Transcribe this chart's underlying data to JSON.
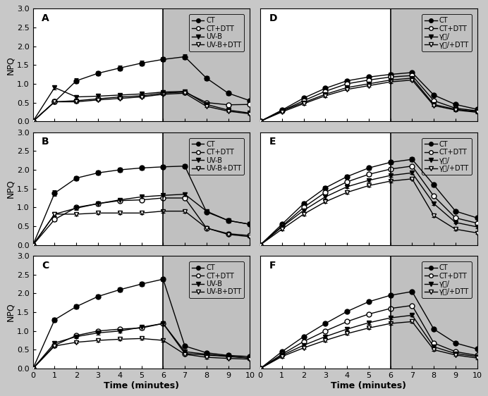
{
  "figsize": [
    6.92,
    5.62
  ],
  "dpi": 100,
  "shade_start": 6,
  "shade_end": 10,
  "time": [
    0,
    1,
    2,
    3,
    4,
    5,
    6,
    7,
    8,
    9,
    10
  ],
  "ylim": [
    0.0,
    3.0
  ],
  "yticks": [
    0.0,
    0.5,
    1.0,
    1.5,
    2.0,
    2.5,
    3.0
  ],
  "xlim": [
    0,
    10
  ],
  "xticks": [
    0,
    1,
    2,
    3,
    4,
    5,
    6,
    7,
    8,
    9,
    10
  ],
  "panels": [
    {
      "label": "A",
      "CT": [
        0.0,
        0.52,
        1.08,
        1.28,
        1.42,
        1.55,
        1.65,
        1.72,
        1.15,
        0.75,
        0.55
      ],
      "CT_DTT": [
        0.0,
        0.52,
        0.55,
        0.6,
        0.65,
        0.68,
        0.75,
        0.78,
        0.5,
        0.44,
        0.45
      ],
      "UVB": [
        0.0,
        0.9,
        0.65,
        0.67,
        0.7,
        0.73,
        0.78,
        0.8,
        0.45,
        0.3,
        0.22
      ],
      "UVB_DTT": [
        0.0,
        0.52,
        0.52,
        0.57,
        0.61,
        0.65,
        0.72,
        0.75,
        0.4,
        0.27,
        0.2
      ],
      "legend_label3": "UV-B",
      "legend_label4": "UV-B+DTT",
      "CT_err": [
        0,
        0.05,
        0.06,
        0.06,
        0.06,
        0.06,
        0.06,
        0.06,
        0.05,
        0.05,
        0.04
      ],
      "CT_DTT_err": [
        0,
        0.03,
        0.03,
        0.03,
        0.03,
        0.03,
        0.03,
        0.03,
        0.03,
        0.03,
        0.03
      ],
      "UVB_err": [
        0,
        0.05,
        0.04,
        0.04,
        0.04,
        0.04,
        0.04,
        0.04,
        0.03,
        0.03,
        0.03
      ],
      "UVB_DTT_err": [
        0,
        0.03,
        0.03,
        0.03,
        0.03,
        0.03,
        0.03,
        0.03,
        0.03,
        0.03,
        0.03
      ]
    },
    {
      "label": "D",
      "CT": [
        0.0,
        0.3,
        0.62,
        0.88,
        1.08,
        1.18,
        1.25,
        1.3,
        0.7,
        0.45,
        0.32
      ],
      "CT_DTT": [
        0.0,
        0.28,
        0.55,
        0.8,
        1.0,
        1.1,
        1.18,
        1.22,
        0.55,
        0.35,
        0.28
      ],
      "UVB": [
        0.0,
        0.28,
        0.5,
        0.72,
        0.9,
        1.0,
        1.1,
        1.15,
        0.45,
        0.32,
        0.26
      ],
      "UVB_DTT": [
        0.0,
        0.25,
        0.47,
        0.68,
        0.85,
        0.95,
        1.05,
        1.1,
        0.42,
        0.3,
        0.24
      ],
      "legend_label3": "γ線/",
      "legend_label4": "γ線/+DTT",
      "CT_err": [
        0,
        0.03,
        0.04,
        0.04,
        0.04,
        0.04,
        0.04,
        0.04,
        0.04,
        0.03,
        0.03
      ],
      "CT_DTT_err": [
        0,
        0.03,
        0.03,
        0.03,
        0.03,
        0.03,
        0.03,
        0.03,
        0.03,
        0.03,
        0.03
      ],
      "UVB_err": [
        0,
        0.03,
        0.03,
        0.03,
        0.03,
        0.03,
        0.03,
        0.03,
        0.03,
        0.03,
        0.03
      ],
      "UVB_DTT_err": [
        0,
        0.03,
        0.03,
        0.03,
        0.03,
        0.03,
        0.03,
        0.03,
        0.03,
        0.03,
        0.03
      ]
    },
    {
      "label": "B",
      "CT": [
        0.0,
        1.38,
        1.78,
        1.92,
        2.0,
        2.05,
        2.08,
        2.1,
        0.88,
        0.65,
        0.55
      ],
      "CT_DTT": [
        0.0,
        0.68,
        1.0,
        1.1,
        1.18,
        1.2,
        1.25,
        1.25,
        0.45,
        0.3,
        0.25
      ],
      "UVB": [
        0.0,
        0.82,
        0.98,
        1.1,
        1.2,
        1.28,
        1.32,
        1.35,
        0.9,
        0.65,
        0.55
      ],
      "UVB_DTT": [
        0.0,
        0.82,
        0.82,
        0.85,
        0.85,
        0.85,
        0.9,
        0.9,
        0.45,
        0.28,
        0.22
      ],
      "legend_label3": "UV-B",
      "legend_label4": "UV-B+DTT",
      "CT_err": [
        0,
        0.08,
        0.06,
        0.06,
        0.05,
        0.05,
        0.05,
        0.05,
        0.05,
        0.05,
        0.04
      ],
      "CT_DTT_err": [
        0,
        0.05,
        0.04,
        0.04,
        0.04,
        0.04,
        0.04,
        0.04,
        0.03,
        0.03,
        0.03
      ],
      "UVB_err": [
        0,
        0.05,
        0.05,
        0.05,
        0.05,
        0.05,
        0.05,
        0.05,
        0.04,
        0.04,
        0.04
      ],
      "UVB_DTT_err": [
        0,
        0.04,
        0.04,
        0.04,
        0.04,
        0.04,
        0.04,
        0.04,
        0.03,
        0.03,
        0.03
      ]
    },
    {
      "label": "E",
      "CT": [
        0.0,
        0.55,
        1.1,
        1.52,
        1.82,
        2.05,
        2.2,
        2.28,
        1.6,
        0.9,
        0.72
      ],
      "CT_DTT": [
        0.0,
        0.5,
        1.0,
        1.4,
        1.68,
        1.88,
        2.02,
        2.1,
        1.3,
        0.72,
        0.58
      ],
      "UVB": [
        0.0,
        0.48,
        0.92,
        1.28,
        1.55,
        1.72,
        1.85,
        1.92,
        1.1,
        0.6,
        0.48
      ],
      "UVB_DTT": [
        0.0,
        0.42,
        0.82,
        1.15,
        1.4,
        1.58,
        1.7,
        1.76,
        0.78,
        0.42,
        0.32
      ],
      "legend_label3": "γ線/",
      "legend_label4": "γ線/+DTT",
      "CT_err": [
        0,
        0.04,
        0.05,
        0.05,
        0.05,
        0.05,
        0.05,
        0.05,
        0.05,
        0.04,
        0.04
      ],
      "CT_DTT_err": [
        0,
        0.04,
        0.04,
        0.04,
        0.04,
        0.04,
        0.04,
        0.04,
        0.04,
        0.03,
        0.03
      ],
      "UVB_err": [
        0,
        0.03,
        0.04,
        0.04,
        0.04,
        0.04,
        0.04,
        0.04,
        0.03,
        0.03,
        0.03
      ],
      "UVB_DTT_err": [
        0,
        0.03,
        0.03,
        0.03,
        0.03,
        0.03,
        0.03,
        0.03,
        0.03,
        0.03,
        0.03
      ]
    },
    {
      "label": "C",
      "CT": [
        0.0,
        1.3,
        1.65,
        1.92,
        2.1,
        2.25,
        2.38,
        0.6,
        0.42,
        0.35,
        0.32
      ],
      "CT_DTT": [
        0.0,
        0.62,
        0.88,
        1.0,
        1.05,
        1.08,
        1.2,
        0.4,
        0.36,
        0.32,
        0.28
      ],
      "UVB": [
        0.0,
        0.68,
        0.85,
        0.95,
        1.0,
        1.1,
        1.2,
        0.45,
        0.38,
        0.33,
        0.28
      ],
      "UVB_DTT": [
        0.0,
        0.6,
        0.7,
        0.75,
        0.78,
        0.8,
        0.75,
        0.38,
        0.3,
        0.27,
        0.25
      ],
      "legend_label3": "UV-B",
      "legend_label4": "UV-B+DTT",
      "CT_err": [
        0,
        0.06,
        0.05,
        0.05,
        0.05,
        0.05,
        0.05,
        0.04,
        0.03,
        0.03,
        0.03
      ],
      "CT_DTT_err": [
        0,
        0.04,
        0.04,
        0.04,
        0.04,
        0.04,
        0.04,
        0.03,
        0.03,
        0.03,
        0.03
      ],
      "UVB_err": [
        0,
        0.04,
        0.04,
        0.04,
        0.04,
        0.04,
        0.04,
        0.03,
        0.03,
        0.03,
        0.03
      ],
      "UVB_DTT_err": [
        0,
        0.03,
        0.03,
        0.03,
        0.03,
        0.03,
        0.03,
        0.03,
        0.03,
        0.03,
        0.03
      ]
    },
    {
      "label": "F",
      "CT": [
        0.0,
        0.45,
        0.85,
        1.2,
        1.52,
        1.78,
        1.95,
        2.05,
        1.05,
        0.68,
        0.52
      ],
      "CT_DTT": [
        0.0,
        0.38,
        0.72,
        1.0,
        1.25,
        1.45,
        1.6,
        1.68,
        0.68,
        0.45,
        0.35
      ],
      "UVB": [
        0.0,
        0.35,
        0.62,
        0.85,
        1.05,
        1.22,
        1.35,
        1.42,
        0.58,
        0.4,
        0.32
      ],
      "UVB_DTT": [
        0.0,
        0.32,
        0.55,
        0.75,
        0.93,
        1.08,
        1.2,
        1.25,
        0.5,
        0.36,
        0.28
      ],
      "legend_label3": "γ線/",
      "legend_label4": "γ線/+DTT",
      "CT_err": [
        0,
        0.04,
        0.04,
        0.04,
        0.04,
        0.04,
        0.04,
        0.04,
        0.04,
        0.03,
        0.03
      ],
      "CT_DTT_err": [
        0,
        0.03,
        0.03,
        0.03,
        0.03,
        0.03,
        0.03,
        0.03,
        0.03,
        0.03,
        0.03
      ],
      "UVB_err": [
        0,
        0.03,
        0.03,
        0.03,
        0.03,
        0.03,
        0.03,
        0.03,
        0.03,
        0.03,
        0.03
      ],
      "UVB_DTT_err": [
        0,
        0.03,
        0.03,
        0.03,
        0.03,
        0.03,
        0.03,
        0.03,
        0.03,
        0.03,
        0.03
      ]
    }
  ],
  "ylabel": "NPQ",
  "xlabel": "Time (minutes)",
  "fig_bg": "#c8c8c8",
  "plot_bg_white": "#ffffff",
  "shade_color": "#c0c0c0",
  "marker_size": 5,
  "font_size": 9,
  "label_fontsize": 10
}
